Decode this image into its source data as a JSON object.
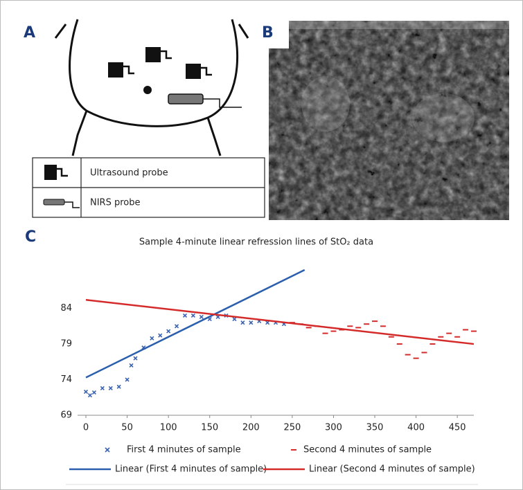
{
  "figure": {
    "panel_labels": [
      "A",
      "B",
      "C"
    ],
    "legend": [
      "Ultrasound probe",
      "NIRS probe"
    ]
  },
  "chart_data": {
    "type": "scatter",
    "title": "Sample 4-minute linear refression lines of StO₂ data",
    "xlim": [
      0,
      470
    ],
    "ylim": [
      69,
      89.4
    ],
    "xticks": [
      0,
      50,
      100,
      150,
      200,
      250,
      300,
      350,
      400,
      450
    ],
    "yticks": [
      69,
      74,
      79,
      84
    ],
    "series": [
      {
        "name": "First 4 minutes of sample",
        "color": "#3a62b0",
        "style": "x",
        "x": [
          0,
          5,
          10,
          20,
          30,
          40,
          50,
          55,
          60,
          70,
          80,
          90,
          100,
          110,
          120,
          130,
          140,
          150,
          160,
          170,
          180,
          190,
          200,
          210,
          220,
          230,
          240
        ],
        "values": [
          72.3,
          71.8,
          72.2,
          72.8,
          72.8,
          73,
          74,
          76,
          77,
          78.5,
          79.8,
          80.2,
          80.8,
          81.5,
          83,
          83,
          82.8,
          82.5,
          82.8,
          83,
          82.5,
          82,
          82,
          82.2,
          82,
          82,
          81.8
        ]
      },
      {
        "name": "Second 4 minutes of sample",
        "color": "#d42a2a",
        "style": "dash",
        "x": [
          250,
          260,
          270,
          280,
          290,
          300,
          310,
          320,
          330,
          340,
          350,
          360,
          370,
          380,
          390,
          400,
          410,
          420,
          430,
          440,
          450,
          460,
          470
        ],
        "values": [
          82,
          81.8,
          81.3,
          81.5,
          80.5,
          80.8,
          81,
          81.5,
          81.3,
          81.8,
          82.2,
          81.5,
          80,
          79,
          77.5,
          77,
          77.8,
          79,
          80,
          80.5,
          80,
          81,
          80.8
        ]
      },
      {
        "name": "Linear (First 4 minutes of sample)",
        "color": "#2b5fae",
        "style": "line",
        "x": [
          0,
          265
        ],
        "values": [
          74.3,
          89.4
        ]
      },
      {
        "name": "Linear (Second 4 minutes of sample)",
        "color": "#d42a2a",
        "style": "line",
        "x": [
          0,
          470
        ],
        "values": [
          85.2,
          79
        ]
      }
    ]
  }
}
